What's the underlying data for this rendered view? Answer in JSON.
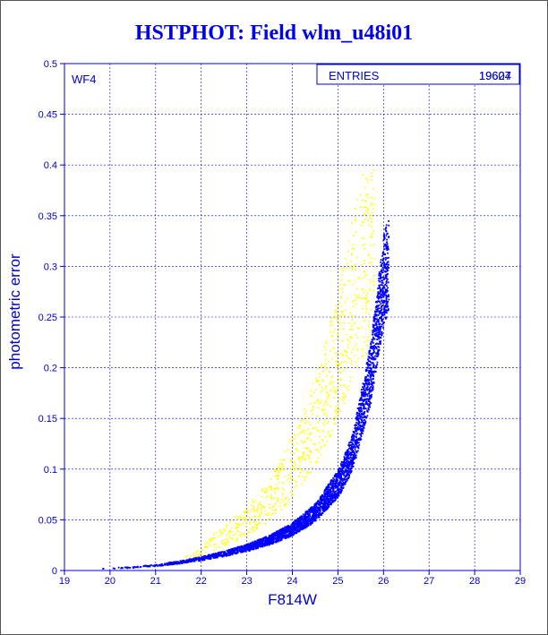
{
  "chart_data": {
    "type": "scatter",
    "title": "HSTPHOT: Field wlm_u48i01",
    "xlabel": "F814W",
    "ylabel": "photometric error",
    "xlim": [
      19,
      29
    ],
    "ylim": [
      0,
      0.5
    ],
    "xticks": [
      "19",
      "20",
      "21",
      "22",
      "23",
      "24",
      "25",
      "26",
      "27",
      "28",
      "29"
    ],
    "yticks": [
      "0",
      "0.05",
      "0.1",
      "0.15",
      "0.2",
      "0.25",
      "0.3",
      "0.35",
      "0.4",
      "0.45",
      "0.5"
    ],
    "grid": true,
    "panel_label": "WF4",
    "stats_box": {
      "label": "ENTRIES",
      "values": [
        "19604",
        "19627"
      ]
    },
    "series": [
      {
        "color": "#0000ff",
        "relation": "error rises steeply with magnitude; dense locus",
        "points": [
          [
            19.5,
            0.002
          ],
          [
            20.0,
            0.003
          ],
          [
            20.5,
            0.004
          ],
          [
            21.0,
            0.006
          ],
          [
            21.5,
            0.009
          ],
          [
            22.0,
            0.013
          ],
          [
            22.5,
            0.018
          ],
          [
            23.0,
            0.024
          ],
          [
            23.5,
            0.032
          ],
          [
            24.0,
            0.043
          ],
          [
            24.5,
            0.06
          ],
          [
            25.0,
            0.09
          ],
          [
            25.3,
            0.12
          ],
          [
            25.5,
            0.16
          ],
          [
            25.7,
            0.2
          ],
          [
            25.85,
            0.25
          ],
          [
            26.0,
            0.3
          ],
          [
            26.1,
            0.31
          ]
        ]
      },
      {
        "color": "#ffff00",
        "relation": "yellow points lying above the blue locus",
        "points": [
          [
            21.5,
            0.012
          ],
          [
            22.0,
            0.02
          ],
          [
            22.5,
            0.035
          ],
          [
            23.0,
            0.05
          ],
          [
            23.5,
            0.07
          ],
          [
            23.8,
            0.09
          ],
          [
            24.2,
            0.12
          ],
          [
            24.6,
            0.16
          ],
          [
            24.9,
            0.2
          ],
          [
            25.2,
            0.25
          ],
          [
            25.5,
            0.3
          ],
          [
            25.8,
            0.31
          ]
        ]
      }
    ]
  }
}
